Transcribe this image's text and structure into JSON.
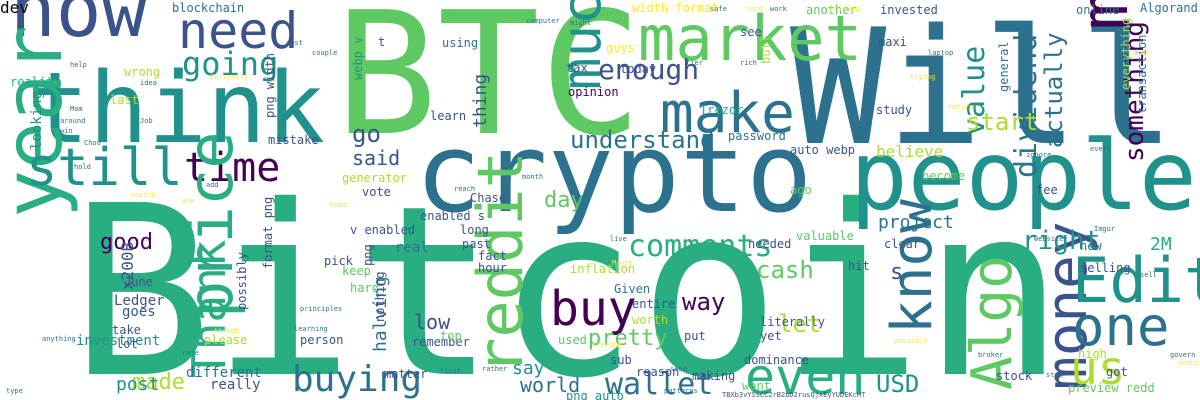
{
  "palette": {
    "background": "#ffffff",
    "dark_purple": "#440154",
    "indigo": "#3b528b",
    "blue": "#2c728e",
    "teal": "#21918c",
    "green": "#28ae80",
    "light_green": "#5ec962",
    "lime": "#addc30",
    "yellow": "#fde725"
  },
  "words": [
    {
      "text": "Bitcoin",
      "color": "#28ae80",
      "vertical": false
    },
    {
      "text": "BTC",
      "color": "#5ec962",
      "vertical": false
    },
    {
      "text": "Will",
      "color": "#2c728e",
      "vertical": false
    },
    {
      "text": "crypto",
      "color": "#2c728e",
      "vertical": false
    },
    {
      "text": "people",
      "color": "#21918c",
      "vertical": false
    },
    {
      "text": "think",
      "color": "#21918c",
      "vertical": false
    },
    {
      "text": "now",
      "color": "#3b528b",
      "vertical": false
    },
    {
      "text": "need",
      "color": "#3b528b",
      "vertical": false
    },
    {
      "text": "market",
      "color": "#5ec962",
      "vertical": false
    },
    {
      "text": "much",
      "color": "#21918c",
      "vertical": true
    },
    {
      "text": "make",
      "color": "#2c728e",
      "vertical": false
    },
    {
      "text": "many",
      "color": "#440154",
      "vertical": true
    },
    {
      "text": "year",
      "color": "#28ae80",
      "vertical": true
    },
    {
      "text": "still",
      "color": "#21918c",
      "vertical": false
    },
    {
      "text": "time",
      "color": "#440154",
      "vertical": false
    },
    {
      "text": "price",
      "color": "#28ae80",
      "vertical": true
    },
    {
      "text": "Thank",
      "color": "#28ae80",
      "vertical": true
    },
    {
      "text": "reddit",
      "color": "#5ec962",
      "vertical": true
    },
    {
      "text": "money",
      "color": "#3b528b",
      "vertical": true
    },
    {
      "text": "Edit",
      "color": "#21918c",
      "vertical": false
    },
    {
      "text": "one",
      "color": "#2c728e",
      "vertical": false
    },
    {
      "text": "us",
      "color": "#addc30",
      "vertical": false
    },
    {
      "text": "Algo",
      "color": "#5ec962",
      "vertical": true
    },
    {
      "text": "know",
      "color": "#2c728e",
      "vertical": true
    },
    {
      "text": "buy",
      "color": "#440154",
      "vertical": false
    },
    {
      "text": "even",
      "color": "#28ae80",
      "vertical": false
    },
    {
      "text": "buying",
      "color": "#2c728e",
      "vertical": false
    },
    {
      "text": "wallet",
      "color": "#2c728e",
      "vertical": false
    },
    {
      "text": "going",
      "color": "#21918c",
      "vertical": false
    },
    {
      "text": "enough",
      "color": "#3b528b",
      "vertical": false
    },
    {
      "text": "value",
      "color": "#21918c",
      "vertical": true
    },
    {
      "text": "dividend",
      "color": "#2c728e",
      "vertical": true
    },
    {
      "text": "comments",
      "color": "#28ae80",
      "vertical": false
    },
    {
      "text": "understand",
      "color": "#2c728e",
      "vertical": false
    },
    {
      "text": "go",
      "color": "#3b528b",
      "vertical": false
    },
    {
      "text": "made",
      "color": "#addc30",
      "vertical": false
    },
    {
      "text": "USD",
      "color": "#21918c",
      "vertical": false
    },
    {
      "text": "right",
      "color": "#21918c",
      "vertical": false
    },
    {
      "text": "let",
      "color": "#addc30",
      "vertical": false
    },
    {
      "text": "way",
      "color": "#440154",
      "vertical": false
    },
    {
      "text": "cash",
      "color": "#5ec962",
      "vertical": false
    },
    {
      "text": "actually",
      "color": "#2c728e",
      "vertical": true
    },
    {
      "text": "something",
      "color": "#440154",
      "vertical": true
    },
    {
      "text": "start",
      "color": "#addc30",
      "vertical": false
    },
    {
      "text": "pretty",
      "color": "#5ec962",
      "vertical": false
    },
    {
      "text": "good",
      "color": "#440154",
      "vertical": false
    },
    {
      "text": "day",
      "color": "#5ec962",
      "vertical": false
    },
    {
      "text": "said",
      "color": "#3b528b",
      "vertical": false
    },
    {
      "text": "low",
      "color": "#3b528b",
      "vertical": false
    },
    {
      "text": "post",
      "color": "#21918c",
      "vertical": false
    },
    {
      "text": "world",
      "color": "#2c728e",
      "vertical": false
    },
    {
      "text": "say",
      "color": "#21918c",
      "vertical": false
    },
    {
      "text": "s",
      "color": "#3b528b",
      "vertical": false
    },
    {
      "text": "2M",
      "color": "#28ae80",
      "vertical": false
    },
    {
      "text": "x200B",
      "color": "#3b528b",
      "vertical": true
    },
    {
      "text": "halving",
      "color": "#2c728e",
      "vertical": true
    },
    {
      "text": "thing",
      "color": "#3b528b",
      "vertical": true
    },
    {
      "text": "Ledger",
      "color": "#3b528b",
      "vertical": false
    },
    {
      "text": "goes",
      "color": "#3b528b",
      "vertical": false
    },
    {
      "text": "looking",
      "color": "#21918c",
      "vertical": true
    },
    {
      "text": "real",
      "color": "#2c728e",
      "vertical": false
    },
    {
      "text": "project",
      "color": "#2c728e",
      "vertical": false
    },
    {
      "text": "believe",
      "color": "#addc30",
      "vertical": false
    },
    {
      "text": "different",
      "color": "#2c728e",
      "vertical": false
    },
    {
      "text": "really",
      "color": "#3b528b",
      "vertical": false
    },
    {
      "text": "investment",
      "color": "#21918c",
      "vertical": false
    },
    {
      "text": "blockchain",
      "color": "#2c728e",
      "vertical": false
    },
    {
      "text": "width format",
      "color": "#fde725",
      "vertical": false
    },
    {
      "text": "another",
      "color": "#5ec962",
      "vertical": false
    },
    {
      "text": "invested",
      "color": "#3b528b",
      "vertical": false
    },
    {
      "text": "online",
      "color": "#2c728e",
      "vertical": false
    },
    {
      "text": "Algorand",
      "color": "#2c728e",
      "vertical": false
    },
    {
      "text": "reality",
      "color": "#28ae80",
      "vertical": false
    },
    {
      "text": "today",
      "color": "#3b528b",
      "vertical": false
    },
    {
      "text": "maxi",
      "color": "#3b528b",
      "vertical": false
    },
    {
      "text": "see",
      "color": "#3b528b",
      "vertical": false
    },
    {
      "text": "opinion",
      "color": "#440154",
      "vertical": false
    },
    {
      "text": "Trezor",
      "color": "#28ae80",
      "vertical": false
    },
    {
      "text": "study",
      "color": "#3b528b",
      "vertical": false
    },
    {
      "text": "password",
      "color": "#2c728e",
      "vertical": false
    },
    {
      "text": "auto webp",
      "color": "#3b528b",
      "vertical": false
    },
    {
      "text": "png width",
      "color": "#3b528b",
      "vertical": true
    },
    {
      "text": "vote",
      "color": "#3b528b",
      "vertical": false
    },
    {
      "text": "Chase",
      "color": "#3b528b",
      "vertical": false
    },
    {
      "text": "mistake",
      "color": "#3b528b",
      "vertical": false
    },
    {
      "text": "webp v",
      "color": "#21918c",
      "vertical": true
    },
    {
      "text": "wrong",
      "color": "#addc30",
      "vertical": false
    },
    {
      "text": "last",
      "color": "#addc30",
      "vertical": false
    },
    {
      "text": "guys",
      "color": "#fde725",
      "vertical": false
    },
    {
      "text": "learn",
      "color": "#3b528b",
      "vertical": false
    },
    {
      "text": "using",
      "color": "#2c728e",
      "vertical": false
    },
    {
      "text": "t",
      "color": "#3b528b",
      "vertical": false
    },
    {
      "text": "tax",
      "color": "#3b528b",
      "vertical": false
    },
    {
      "text": "bull",
      "color": "#addc30",
      "vertical": true
    },
    {
      "text": "general",
      "color": "#2c728e",
      "vertical": true
    },
    {
      "text": "transaction",
      "color": "#2c728e",
      "vertical": true
    },
    {
      "text": "everything",
      "color": "#addc30",
      "vertical": true
    },
    {
      "text": "long",
      "color": "#3b528b",
      "vertical": false
    },
    {
      "text": "past",
      "color": "#3b528b",
      "vertical": false
    },
    {
      "text": "fact",
      "color": "#3b528b",
      "vertical": false
    },
    {
      "text": "generator",
      "color": "#addc30",
      "vertical": false
    },
    {
      "text": "png",
      "color": "#3b528b",
      "vertical": true
    },
    {
      "text": "format png",
      "color": "#3b528b",
      "vertical": true
    },
    {
      "text": "pick",
      "color": "#3b528b",
      "vertical": false
    },
    {
      "text": "keep",
      "color": "#5ec962",
      "vertical": false
    },
    {
      "text": "hard",
      "color": "#5ec962",
      "vertical": false
    },
    {
      "text": "v enabled",
      "color": "#3b528b",
      "vertical": false
    },
    {
      "text": "enabled s",
      "color": "#3b528b",
      "vertical": false
    },
    {
      "text": "ago",
      "color": "#5ec962",
      "vertical": false
    },
    {
      "text": "valuable",
      "color": "#5ec962",
      "vertical": false
    },
    {
      "text": "become",
      "color": "#5ec962",
      "vertical": false
    },
    {
      "text": "fee",
      "color": "#3b528b",
      "vertical": false
    },
    {
      "text": "new",
      "color": "#2c728e",
      "vertical": false
    },
    {
      "text": "selling",
      "color": "#3b528b",
      "vertical": false
    },
    {
      "text": "clear",
      "color": "#3b528b",
      "vertical": false
    },
    {
      "text": "hit",
      "color": "#3b528b",
      "vertical": false
    },
    {
      "text": "hour",
      "color": "#3b528b",
      "vertical": false
    },
    {
      "text": "June",
      "color": "#3b528b",
      "vertical": false
    },
    {
      "text": "inflation",
      "color": "#addc30",
      "vertical": false
    },
    {
      "text": "Given",
      "color": "#2c728e",
      "vertical": false
    },
    {
      "text": "needed",
      "color": "#3b528b",
      "vertical": false
    },
    {
      "text": "entire",
      "color": "#3b528b",
      "vertical": false
    },
    {
      "text": "worth",
      "color": "#addc30",
      "vertical": false
    },
    {
      "text": "literally",
      "color": "#3b528b",
      "vertical": false
    },
    {
      "text": "yet",
      "color": "#3b528b",
      "vertical": false
    },
    {
      "text": "take",
      "color": "#3b528b",
      "vertical": false
    },
    {
      "text": "lot",
      "color": "#3b528b",
      "vertical": false
    },
    {
      "text": "please",
      "color": "#addc30",
      "vertical": false
    },
    {
      "text": "possibly",
      "color": "#3b528b",
      "vertical": true
    },
    {
      "text": "person",
      "color": "#3b528b",
      "vertical": false
    },
    {
      "text": "nothing",
      "color": "#3b528b",
      "vertical": true
    },
    {
      "text": "remember",
      "color": "#3b528b",
      "vertical": false
    },
    {
      "text": "top",
      "color": "#5ec962",
      "vertical": false
    },
    {
      "text": "put",
      "color": "#3b528b",
      "vertical": false
    },
    {
      "text": "used",
      "color": "#5ec962",
      "vertical": false
    },
    {
      "text": "sub",
      "color": "#3b528b",
      "vertical": false
    },
    {
      "text": "reason",
      "color": "#3b528b",
      "vertical": false
    },
    {
      "text": "dominance",
      "color": "#3b528b",
      "vertical": false
    },
    {
      "text": "making",
      "color": "#3b528b",
      "vertical": false
    },
    {
      "text": "want",
      "color": "#5ec962",
      "vertical": false
    },
    {
      "text": "matter",
      "color": "#3b528b",
      "vertical": false
    },
    {
      "text": "png auto",
      "color": "#21918c",
      "vertical": false
    },
    {
      "text": "high",
      "color": "#addc30",
      "vertical": false
    },
    {
      "text": "got",
      "color": "#3b528b",
      "vertical": false
    },
    {
      "text": "stock",
      "color": "#3b528b",
      "vertical": false
    },
    {
      "text": "preview redd",
      "color": "#5ec962",
      "vertical": false
    },
    {
      "text": "TBXb3vYSsCC2rB2bD2rusQjxEyYUDEKcHT",
      "color": "#3b528b",
      "vertical": false
    },
    {
      "text": "computer",
      "color": "#2c728e",
      "vertical": false
    },
    {
      "text": "safe",
      "color": "#2c728e",
      "vertical": false
    },
    {
      "text": "work",
      "color": "#2c728e",
      "vertical": false
    },
    {
      "text": "card",
      "color": "#fde725",
      "vertical": false
    },
    {
      "text": "Holding",
      "color": "#fde725",
      "vertical": false
    },
    {
      "text": "might",
      "color": "#2c728e",
      "vertical": false
    },
    {
      "text": "couple",
      "color": "#2c728e",
      "vertical": false
    },
    {
      "text": "cost",
      "color": "#2c728e",
      "vertical": false
    },
    {
      "text": "help",
      "color": "#2c728e",
      "vertical": false
    },
    {
      "text": "Currently",
      "color": "#fde725",
      "vertical": false
    },
    {
      "text": "idea",
      "color": "#2c728e",
      "vertical": false
    },
    {
      "text": "rich",
      "color": "#2c728e",
      "vertical": false
    },
    {
      "text": "tier",
      "color": "#2c728e",
      "vertical": false
    },
    {
      "text": "laptop",
      "color": "#2c728e",
      "vertical": false
    },
    {
      "text": "trying",
      "color": "#fde725",
      "vertical": false
    },
    {
      "text": "retire",
      "color": "#fde725",
      "vertical": false
    },
    {
      "text": "token",
      "color": "#fde725",
      "vertical": false
    },
    {
      "text": "Mom",
      "color": "#2c728e",
      "vertical": false
    },
    {
      "text": "around",
      "color": "#2c728e",
      "vertical": false
    },
    {
      "text": "Job",
      "color": "#2c728e",
      "vertical": false
    },
    {
      "text": "win",
      "color": "#2c728e",
      "vertical": false
    },
    {
      "text": "Choo",
      "color": "#2c728e",
      "vertical": false
    },
    {
      "text": "hold",
      "color": "#2c728e",
      "vertical": false
    },
    {
      "text": "add",
      "color": "#2c728e",
      "vertical": false
    },
    {
      "text": "search",
      "color": "#fde725",
      "vertical": false
    },
    {
      "text": "ask",
      "color": "#fde725",
      "vertical": false
    },
    {
      "text": "month",
      "color": "#2c728e",
      "vertical": false
    },
    {
      "text": "reach",
      "color": "#2c728e",
      "vertical": false
    },
    {
      "text": "hope",
      "color": "#fde725",
      "vertical": false
    },
    {
      "text": "ignore",
      "color": "#2c728e",
      "vertical": false
    },
    {
      "text": "every",
      "color": "#2c728e",
      "vertical": false
    },
    {
      "text": "Imgur",
      "color": "#2c728e",
      "vertical": false
    },
    {
      "text": "website",
      "color": "#2c728e",
      "vertical": false
    },
    {
      "text": "sell",
      "color": "#2c728e",
      "vertical": false
    },
    {
      "text": "live",
      "color": "#2c728e",
      "vertical": false
    },
    {
      "text": "Maybe",
      "color": "#fde725",
      "vertical": false
    },
    {
      "text": "principles",
      "color": "#2c728e",
      "vertical": false
    },
    {
      "text": "learning",
      "color": "#2c728e",
      "vertical": false
    },
    {
      "text": "though",
      "color": "#fde725",
      "vertical": false
    },
    {
      "text": "anything",
      "color": "#2c728e",
      "vertical": false
    },
    {
      "text": "rate",
      "color": "#2c728e",
      "vertical": false
    },
    {
      "text": "freedom",
      "color": "#fde725",
      "vertical": false
    },
    {
      "text": "first",
      "color": "#2c728e",
      "vertical": false
    },
    {
      "text": "rather",
      "color": "#2c728e",
      "vertical": false
    },
    {
      "text": "seem",
      "color": "#2c728e",
      "vertical": false
    },
    {
      "text": "patterns",
      "color": "#2c728e",
      "vertical": false
    },
    {
      "text": "stop",
      "color": "#2c728e",
      "vertical": false
    },
    {
      "text": "type",
      "color": "#2c728e",
      "vertical": false
    },
    {
      "text": "possible",
      "color": "#fde725",
      "vertical": false
    },
    {
      "text": "broker",
      "color": "#2c728e",
      "vertical": false
    },
    {
      "text": "govern",
      "color": "#2c728e",
      "vertical": false
    },
    {
      "text": "deductibles",
      "color": "#fde725",
      "vertical": false
    },
    {
      "text": "dev",
      "color": "#fde725",
      "vertical": false
    }
  ]
}
